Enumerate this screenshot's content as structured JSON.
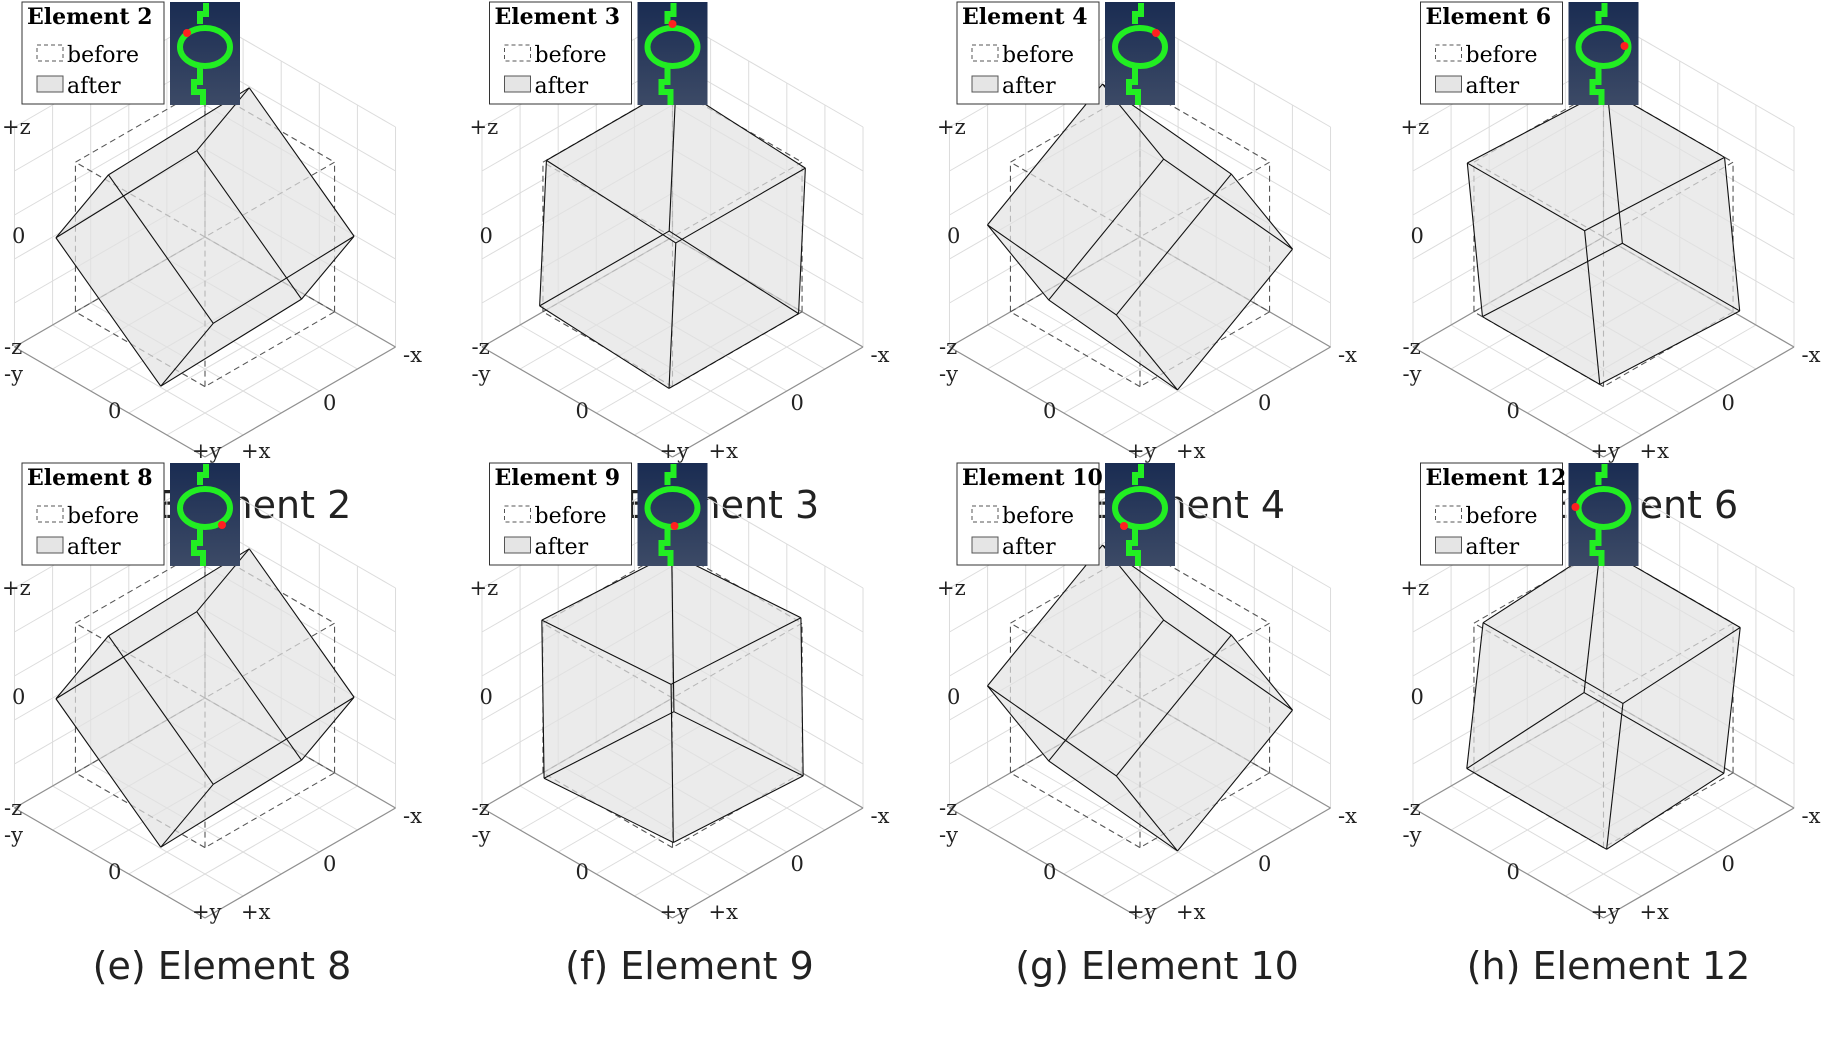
{
  "panels": [
    {
      "id": "a",
      "title": "Element 2",
      "caption": "(a) Element 2",
      "rotation": {
        "x": -10,
        "y": 36,
        "z": 0
      },
      "marker": "top-left"
    },
    {
      "id": "b",
      "title": "Element 3",
      "caption": "(b) Element 3",
      "rotation": {
        "x": 0,
        "y": 3,
        "z": 0
      },
      "marker": "top"
    },
    {
      "id": "c",
      "title": "Element 4",
      "caption": "(c) Element 4",
      "rotation": {
        "x": -34,
        "y": 6,
        "z": 0
      },
      "marker": "top-right"
    },
    {
      "id": "d",
      "title": "Element 6",
      "caption": "(d) Element 6",
      "rotation": {
        "x": -2,
        "y": -5,
        "z": 5
      },
      "marker": "right"
    },
    {
      "id": "e",
      "title": "Element 8",
      "caption": "(e) Element 8",
      "rotation": {
        "x": -10,
        "y": 36,
        "z": 0
      },
      "marker": "bottom-right"
    },
    {
      "id": "f",
      "title": "Element 9",
      "caption": "(f) Element 9",
      "rotation": {
        "x": 3,
        "y": -4,
        "z": 0
      },
      "marker": "bottom"
    },
    {
      "id": "g",
      "title": "Element 10",
      "caption": "(g) Element 10",
      "rotation": {
        "x": -34,
        "y": 6,
        "z": 0
      },
      "marker": "bottom-left"
    },
    {
      "id": "h",
      "title": "Element 12",
      "caption": "(h) Element 12",
      "rotation": {
        "x": 2,
        "y": 5,
        "z": -5
      },
      "marker": "left"
    }
  ],
  "legend": {
    "before": "before",
    "after": "after"
  },
  "axis_labels": {
    "plus_z": "+z",
    "zero_z": "0",
    "minus_z": "-z",
    "minus_y": "-y",
    "zero_y": "0",
    "plus_y": "+y",
    "plus_x": "+x",
    "zero_x": "0",
    "minus_x": "-x"
  },
  "colors": {
    "thumb_bg_top": "#1a2c52",
    "thumb_bg_bottom": "#3c4a66",
    "structure": "#22ee22",
    "marker": "#ff2020",
    "cube_fill": "#e3e3e3",
    "grid": "#dcdcdc",
    "axis": "#909090"
  }
}
